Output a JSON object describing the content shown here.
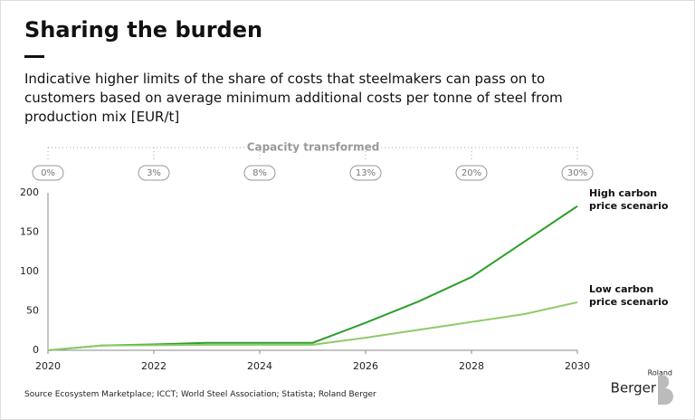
{
  "chart_data": {
    "type": "line",
    "title": "Sharing the burden",
    "subtitle": "Indicative higher limits of the share of costs that steelmakers can pass on to customers based on average minimum additional costs per tonne of steel from production mix [EUR/t]",
    "capacity": {
      "label": "Capacity transformed",
      "x": [
        2020,
        2022,
        2024,
        2026,
        2028,
        2030
      ],
      "labels": [
        "0%",
        "3%",
        "8%",
        "13%",
        "20%",
        "30%"
      ]
    },
    "x": [
      2020,
      2021,
      2022,
      2023,
      2024,
      2025,
      2026,
      2027,
      2028,
      2029,
      2030
    ],
    "series": [
      {
        "name": "High carbon price scenario",
        "color": "#2e9e2a",
        "values": [
          0,
          6,
          7.5,
          9.5,
          9.5,
          9.5,
          35,
          62,
          93,
          138,
          183
        ]
      },
      {
        "name": "Low carbon price scenario",
        "color": "#8fca6a",
        "values": [
          0,
          6,
          6.5,
          7,
          7,
          7,
          16,
          26,
          36,
          46,
          61
        ]
      }
    ],
    "xlim": [
      2020,
      2030
    ],
    "xticks": [
      2020,
      2022,
      2024,
      2026,
      2028,
      2030
    ],
    "ylim": [
      0,
      200
    ],
    "yticks": [
      0,
      50,
      100,
      150,
      200
    ],
    "source": "Source Ecosystem Marketplace; ICCT; World Steel Association; Statista; Roland Berger",
    "logo": {
      "top": "Roland",
      "main": "Berger"
    }
  }
}
